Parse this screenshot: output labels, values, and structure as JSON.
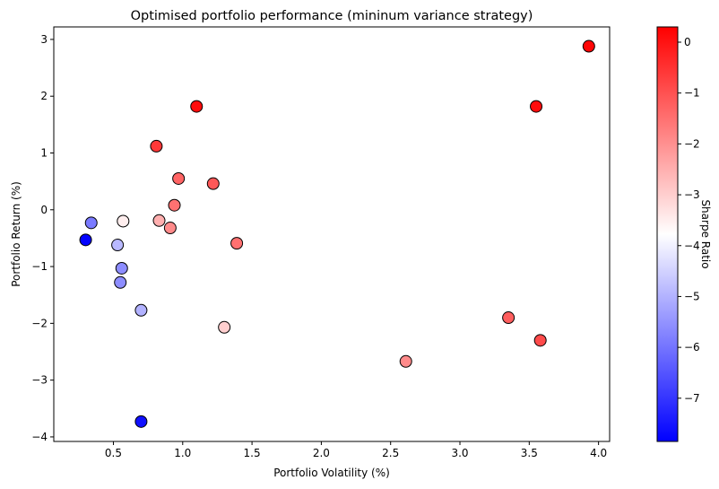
{
  "chart_data": {
    "type": "scatter",
    "title": "Optimised portfolio performance (mininum variance strategy)",
    "xlabel": "Portfolio Volatility (%)",
    "ylabel": "Portfolio Return (%)",
    "xlim": [
      0.07,
      4.08
    ],
    "ylim": [
      -4.08,
      3.22
    ],
    "xticks": [
      0.5,
      1.0,
      1.5,
      2.0,
      2.5,
      3.0,
      3.5,
      4.0
    ],
    "xtick_labels": [
      "0.5",
      "1.0",
      "1.5",
      "2.0",
      "2.5",
      "3.0",
      "3.5",
      "4.0"
    ],
    "yticks": [
      -4,
      -3,
      -2,
      -1,
      0,
      1,
      2,
      3
    ],
    "ytick_labels": [
      "−4",
      "−3",
      "−2",
      "−1",
      "0",
      "1",
      "2",
      "3"
    ],
    "grid": false,
    "colorbar": {
      "label": "Sharpe Ratio",
      "colormap": "bwr",
      "range": [
        -7.85,
        0.3
      ],
      "ticks": [
        0,
        -1,
        -2,
        -3,
        -4,
        -5,
        -6,
        -7
      ],
      "tick_labels": [
        "0",
        "−1",
        "−2",
        "−3",
        "−4",
        "−5",
        "−6",
        "−7"
      ]
    },
    "points": [
      {
        "x": 0.3,
        "y": -0.53,
        "sharpe": -7.8
      },
      {
        "x": 0.34,
        "y": -0.23,
        "sharpe": -5.9
      },
      {
        "x": 0.53,
        "y": -0.62,
        "sharpe": -4.9
      },
      {
        "x": 0.56,
        "y": -1.03,
        "sharpe": -5.6
      },
      {
        "x": 0.55,
        "y": -1.28,
        "sharpe": -5.6
      },
      {
        "x": 0.57,
        "y": -0.2,
        "sharpe": -3.5
      },
      {
        "x": 0.7,
        "y": -1.77,
        "sharpe": -5.0
      },
      {
        "x": 0.7,
        "y": -3.73,
        "sharpe": -7.6
      },
      {
        "x": 0.81,
        "y": 1.12,
        "sharpe": -0.6
      },
      {
        "x": 0.83,
        "y": -0.19,
        "sharpe": -2.5
      },
      {
        "x": 0.91,
        "y": -0.32,
        "sharpe": -1.9
      },
      {
        "x": 0.94,
        "y": 0.08,
        "sharpe": -1.5
      },
      {
        "x": 0.97,
        "y": 0.55,
        "sharpe": -1.3
      },
      {
        "x": 1.1,
        "y": 1.82,
        "sharpe": 0.1
      },
      {
        "x": 1.22,
        "y": 0.46,
        "sharpe": -1.1
      },
      {
        "x": 1.3,
        "y": -2.07,
        "sharpe": -3.0
      },
      {
        "x": 1.39,
        "y": -0.59,
        "sharpe": -1.5
      },
      {
        "x": 2.61,
        "y": -2.67,
        "sharpe": -1.9
      },
      {
        "x": 3.35,
        "y": -1.9,
        "sharpe": -1.2
      },
      {
        "x": 3.55,
        "y": 1.82,
        "sharpe": 0.1
      },
      {
        "x": 3.58,
        "y": -2.3,
        "sharpe": -0.9
      },
      {
        "x": 3.93,
        "y": 2.88,
        "sharpe": 0.2
      }
    ]
  }
}
